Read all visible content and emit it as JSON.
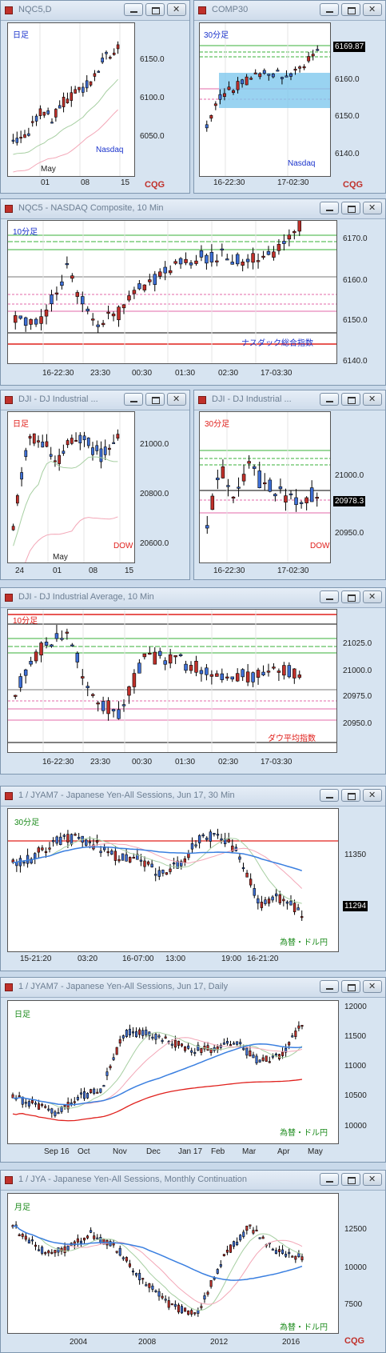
{
  "windows": [
    {
      "id": "w1",
      "title": "NQC5,D",
      "tf": "日足",
      "tf_color": "#1a33cc",
      "corner": "Nasdaq",
      "corner_color": "#1a33cc",
      "y_labels": [
        "6150.0",
        "6100.0",
        "6050.0"
      ],
      "x_labels": [
        "May",
        "01",
        "08",
        "15"
      ],
      "logo": "CQG"
    },
    {
      "id": "w2",
      "title": "COMP30",
      "tf": "30分足",
      "tf_color": "#1a33cc",
      "corner": "Nasdaq",
      "corner_color": "#1a33cc",
      "y_labels": [
        "6169.87",
        "6160.0",
        "6150.0",
        "6140.0"
      ],
      "x_labels": [
        "16-22:30",
        "17-02:30"
      ],
      "price": "6169.87",
      "logo": "CQG"
    },
    {
      "id": "w3",
      "title": "NQC5 - NASDAQ Composite, 10 Min",
      "tf": "10分足",
      "tf_color": "#1a33cc",
      "corner": "ナスダック総合指数",
      "corner_color": "#1a33cc",
      "y_labels": [
        "6170.0",
        "6160.0",
        "6150.0",
        "6140.0"
      ],
      "x_labels": [
        "16-22:30",
        "23:30",
        "00:30",
        "01:30",
        "02:30",
        "17-03:30"
      ]
    },
    {
      "id": "w4",
      "title": "DJI - DJ Industrial ...",
      "tf": "日足",
      "tf_color": "#e0201c",
      "corner": "DOW",
      "corner_color": "#e0201c",
      "y_labels": [
        "21000.0",
        "20800.0",
        "20600.0"
      ],
      "x_labels": [
        "24",
        "01",
        "08",
        "15"
      ],
      "x_top": "May"
    },
    {
      "id": "w5",
      "title": "DJI - DJ Industrial ...",
      "tf": "30分足",
      "tf_color": "#e0201c",
      "corner": "DOW",
      "corner_color": "#e0201c",
      "y_labels": [
        "21000.0",
        "20978.3",
        "20950.0"
      ],
      "x_labels": [
        "16-22:30",
        "17-02:30"
      ],
      "price": "20978.3"
    },
    {
      "id": "w6",
      "title": "DJI - DJ Industrial Average, 10 Min",
      "tf": "10分足",
      "tf_color": "#e0201c",
      "corner": "ダウ平均指数",
      "corner_color": "#e0201c",
      "y_labels": [
        "21025.0",
        "21000.0",
        "20975.0",
        "20950.0"
      ],
      "x_labels": [
        "16-22:30",
        "23:30",
        "00:30",
        "01:30",
        "02:30",
        "17-03:30"
      ]
    },
    {
      "id": "w7",
      "title": "1 / JYAM7 - Japanese Yen-All Sessions, Jun 17, 30 Min",
      "tf": "30分足",
      "tf_color": "#1a8a1a",
      "corner": "為替・ドル円",
      "corner_color": "#1a8a1a",
      "y_labels": [
        "11350",
        "11294"
      ],
      "x_labels": [
        "15-21:20",
        "03:20",
        "16-07:00",
        "13:00",
        "19:00",
        "16-21:20"
      ],
      "price": "11294"
    },
    {
      "id": "w8",
      "title": "1 / JYAM7 - Japanese Yen-All Sessions, Jun 17, Daily",
      "tf": "日足",
      "tf_color": "#1a8a1a",
      "corner": "為替・ドル円",
      "corner_color": "#1a8a1a",
      "y_labels": [
        "12000",
        "11500",
        "11000",
        "10500",
        "10000"
      ],
      "x_labels": [
        "Sep 16",
        "Oct",
        "Nov",
        "Dec",
        "Jan 17",
        "Feb",
        "Mar",
        "Apr",
        "May"
      ]
    },
    {
      "id": "w9",
      "title": "1 / JYA - Japanese Yen-All Sessions, Monthly Continuation",
      "tf": "月足",
      "tf_color": "#1a8a1a",
      "corner": "為替・ドル円",
      "corner_color": "#1a8a1a",
      "y_labels": [
        "12500",
        "10000",
        "7500"
      ],
      "x_labels": [
        "2004",
        "2008",
        "2012",
        "2016"
      ],
      "logo": "CQG"
    }
  ]
}
